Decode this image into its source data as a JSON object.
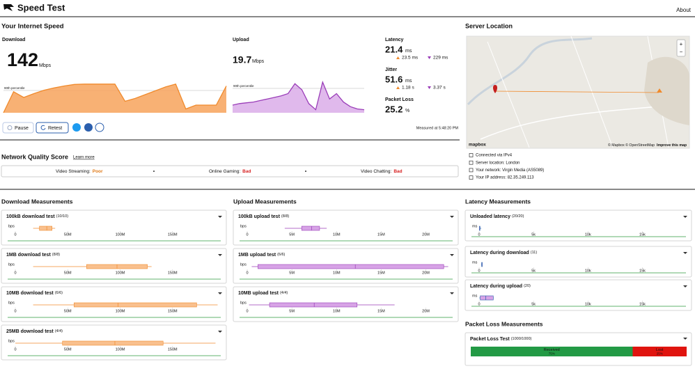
{
  "header": {
    "title": "Speed Test",
    "about": "About"
  },
  "speed": {
    "heading": "Your Internet Speed",
    "download": {
      "label": "Download",
      "value": 142,
      "unit": "Mbps",
      "percentile": "90th percentile",
      "curve": [
        0,
        110,
        80,
        100,
        118,
        130,
        140,
        148,
        150,
        150,
        150,
        150,
        60,
        75,
        95,
        115,
        135,
        150,
        20,
        40,
        40,
        40,
        140
      ],
      "ylim": [
        0,
        160
      ]
    },
    "upload": {
      "label": "Upload",
      "value": 19.7,
      "unit": "Mbps",
      "percentile": "90th percentile",
      "curve": [
        10,
        12,
        13,
        14,
        16,
        18,
        20,
        22,
        25,
        38,
        30,
        12,
        4,
        40,
        18,
        25,
        14,
        8,
        5,
        4
      ],
      "ylim": [
        0,
        40
      ]
    },
    "latency": {
      "label": "Latency",
      "value": 21.4,
      "unit": "ms",
      "down": "23.5 ms",
      "up": "229 ms"
    },
    "jitter": {
      "label": "Jitter",
      "value": 51.6,
      "unit": "ms",
      "down": "1.18 s",
      "up": "3.37 s"
    },
    "loss": {
      "label": "Packet Loss",
      "value": 25.2,
      "unit": "%"
    },
    "buttons": {
      "pause": "Pause",
      "retest": "Retest"
    },
    "measured": "Measured at 5:48:20 PM"
  },
  "server": {
    "heading": "Server Location",
    "map_logo": "mapbox",
    "attribution": "© Mapbox © OpenStreetMap",
    "improve": "Improve this map",
    "info": [
      "Connected via IPv4",
      "Server location: London",
      "Your network: Virgin Media (AS5089)",
      "Your IP address: 82.35.249.113"
    ]
  },
  "quality": {
    "heading": "Network Quality Score",
    "learn": "Learn more",
    "items": [
      {
        "label": "Video Streaming:",
        "value": "Poor"
      },
      {
        "label": "Online Gaming:",
        "value": "Bad"
      },
      {
        "label": "Video Chatting:",
        "value": "Bad"
      }
    ]
  },
  "measurements": [
    {
      "heading": "Download Measurements",
      "unit": "bps",
      "xlim": [
        0,
        196000000
      ],
      "xticks": [
        0,
        {
          "value": 50000000,
          "label": "50M"
        },
        {
          "value": 100000000,
          "label": "100M"
        },
        {
          "value": 150000000,
          "label": "150M"
        }
      ],
      "tests": [
        {
          "name": "100kB download test",
          "count": "(10/10)",
          "box": [
            17000000,
            23000000,
            30000000,
            35000000,
            38000000
          ]
        },
        {
          "name": "1MB download test",
          "count": "(8/8)",
          "box": [
            17000000,
            68000000,
            97000000,
            126000000,
            130000000
          ]
        },
        {
          "name": "10MB download test",
          "count": "(6/6)",
          "box": [
            17000000,
            56000000,
            98000000,
            173000000,
            193000000
          ]
        },
        {
          "name": "25MB download test",
          "count": "(4/4)",
          "box": [
            0,
            45000000,
            95000000,
            141000000,
            191000000
          ]
        }
      ]
    },
    {
      "heading": "Upload Measurements",
      "unit": "bps",
      "xlim": [
        0,
        23000000
      ],
      "xticks": [
        0,
        {
          "value": 5000000,
          "label": "5M"
        },
        {
          "value": 10000000,
          "label": "10M"
        },
        {
          "value": 15000000,
          "label": "15M"
        },
        {
          "value": 20000000,
          "label": "20M"
        }
      ],
      "tests": [
        {
          "name": "100kB upload test",
          "count": "(8/8)",
          "box": [
            4200000,
            6100000,
            7200000,
            8100000,
            8900000
          ]
        },
        {
          "name": "1MB upload test",
          "count": "(6/6)",
          "box": [
            500000,
            1200000,
            12100000,
            22000000,
            22500000
          ]
        },
        {
          "name": "10MB upload test",
          "count": "(4/4)",
          "box": [
            200000,
            2500000,
            7500000,
            12300000,
            16500000
          ]
        }
      ]
    },
    {
      "heading": "Latency Measurements",
      "unit": "ms",
      "xlim": [
        0,
        19000
      ],
      "xticks": [
        0,
        {
          "value": 5000,
          "label": "5k"
        },
        {
          "value": 10000,
          "label": "10k"
        },
        {
          "value": 15000,
          "label": "15k"
        }
      ],
      "tests": [
        {
          "name": "Unloaded latency",
          "count": "(20/20)",
          "box": [
            15,
            18,
            21,
            24,
            200
          ]
        },
        {
          "name": "Latency during download",
          "count": "(11)",
          "box": [
            200,
            230,
            250,
            270,
            300
          ]
        },
        {
          "name": "Latency during upload",
          "count": "(20)",
          "box": [
            20,
            100,
            600,
            1300,
            1340
          ]
        }
      ]
    }
  ],
  "packet_loss": {
    "heading": "Packet Loss Measurements",
    "test": {
      "name": "Packet Loss Test",
      "count": "(1000/1000)"
    },
    "received": {
      "label": "Received",
      "value": 75,
      "value_label": "75%"
    },
    "lost": {
      "label": "Lost",
      "value": 25,
      "value_label": "25%"
    }
  }
}
